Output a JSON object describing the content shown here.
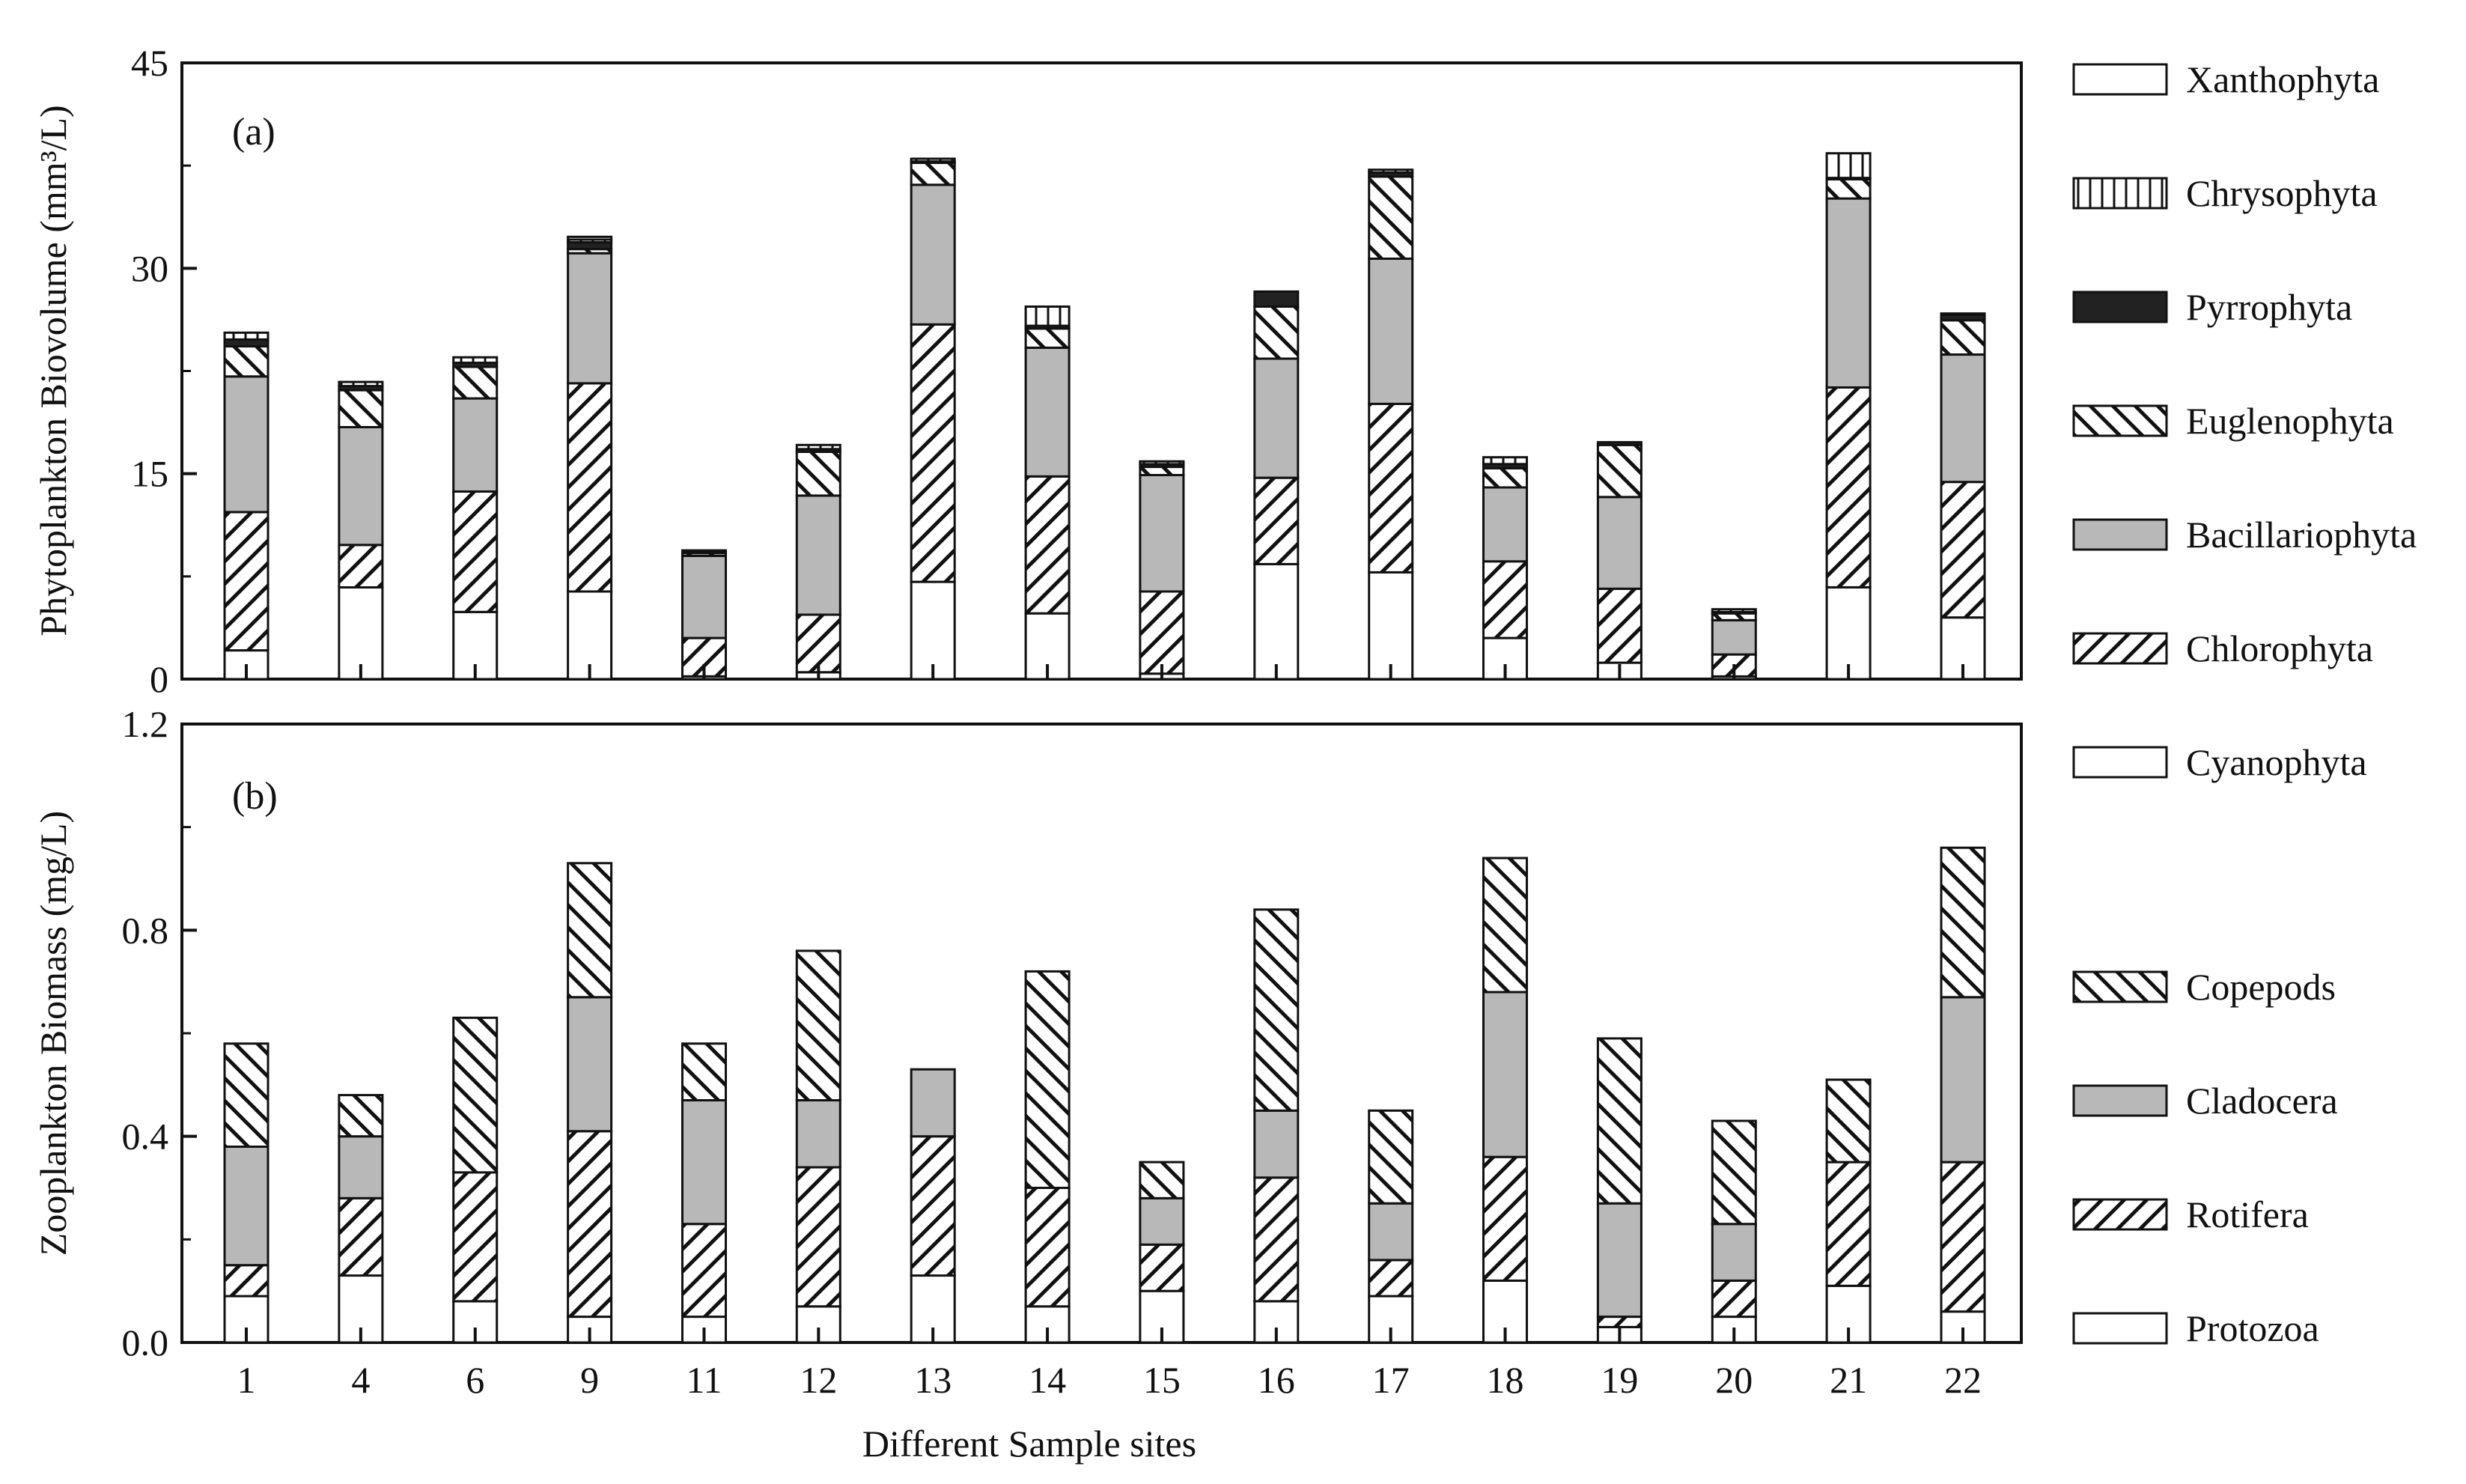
{
  "chart_data": [
    {
      "type": "bar",
      "stacked": true,
      "panel_label": "(a)",
      "ylabel": "Phytoplankton Biovolume (mm³/L)",
      "ylim": [
        0,
        45
      ],
      "yticks": [
        "0",
        "15",
        "30",
        "45"
      ],
      "categories": [
        "1",
        "4",
        "6",
        "9",
        "11",
        "12",
        "13",
        "14",
        "15",
        "16",
        "17",
        "18",
        "19",
        "20",
        "21",
        "22"
      ],
      "series": [
        {
          "name": "Cyanophyta",
          "pattern": "white",
          "values": [
            2.1,
            6.7,
            4.9,
            6.4,
            0.2,
            0.5,
            7.1,
            4.8,
            0.4,
            8.4,
            7.8,
            3.0,
            1.2,
            0.2,
            6.7,
            4.5
          ]
        },
        {
          "name": "Chlorophyta",
          "pattern": "hatch-fwd",
          "values": [
            10.1,
            3.1,
            8.8,
            15.2,
            2.8,
            4.2,
            18.8,
            10.0,
            6.0,
            6.3,
            12.3,
            5.6,
            5.4,
            1.6,
            14.6,
            9.9
          ]
        },
        {
          "name": "Bacillariophyta",
          "pattern": "gray",
          "values": [
            9.9,
            8.6,
            6.8,
            9.5,
            6.0,
            8.7,
            10.2,
            9.4,
            8.5,
            8.7,
            10.6,
            5.4,
            6.7,
            2.5,
            13.8,
            9.3
          ]
        },
        {
          "name": "Euglenophyta",
          "pattern": "hatch-back",
          "values": [
            2.2,
            2.7,
            2.3,
            0.3,
            0.2,
            3.2,
            1.6,
            1.4,
            0.6,
            3.8,
            6.0,
            1.4,
            3.8,
            0.5,
            1.4,
            2.5
          ]
        },
        {
          "name": "Pyrrophyta",
          "pattern": "black",
          "values": [
            0.5,
            0.3,
            0.3,
            0.5,
            0.1,
            0.2,
            0.1,
            0.2,
            0.2,
            1.1,
            0.3,
            0.3,
            0.2,
            0.1,
            0.1,
            0.4
          ]
        },
        {
          "name": "Chrysophyta",
          "pattern": "vlines",
          "values": [
            0.5,
            0.3,
            0.4,
            0.2,
            0.1,
            0.3,
            0.2,
            1.4,
            0.2,
            0.0,
            0.2,
            0.5,
            0.0,
            0.2,
            1.8,
            0.1
          ]
        },
        {
          "name": "Xanthophyta",
          "pattern": "white",
          "values": [
            0.0,
            0.0,
            0.0,
            0.2,
            0.0,
            0.0,
            0.0,
            0.0,
            0.0,
            0.0,
            0.0,
            0.0,
            0.0,
            0.0,
            0.0,
            0.0
          ]
        }
      ],
      "legend": [
        "Xanthophyta",
        "Chrysophyta",
        "Pyrrophyta",
        "Euglenophyta",
        "Bacillariophyta",
        "Chlorophyta",
        "Cyanophyta"
      ],
      "legend_placement": "right"
    },
    {
      "type": "bar",
      "stacked": true,
      "panel_label": "(b)",
      "ylabel": "Zooplankton Biomass (mg/L)",
      "xlabel": "Different Sample sites",
      "ylim": [
        0,
        1.2
      ],
      "yticks": [
        "0.0",
        "0.4",
        "0.8",
        "1.2"
      ],
      "categories": [
        "1",
        "4",
        "6",
        "9",
        "11",
        "12",
        "13",
        "14",
        "15",
        "16",
        "17",
        "18",
        "19",
        "20",
        "21",
        "22"
      ],
      "series": [
        {
          "name": "Protozoa",
          "pattern": "white",
          "values": [
            0.09,
            0.13,
            0.08,
            0.05,
            0.05,
            0.07,
            0.13,
            0.07,
            0.1,
            0.08,
            0.09,
            0.12,
            0.03,
            0.05,
            0.11,
            0.06
          ]
        },
        {
          "name": "Rotifera",
          "pattern": "hatch-fwd",
          "values": [
            0.06,
            0.15,
            0.25,
            0.36,
            0.18,
            0.27,
            0.27,
            0.23,
            0.09,
            0.24,
            0.07,
            0.24,
            0.02,
            0.07,
            0.24,
            0.29
          ]
        },
        {
          "name": "Cladocera",
          "pattern": "gray",
          "values": [
            0.23,
            0.12,
            0.0,
            0.26,
            0.24,
            0.13,
            0.13,
            0.0,
            0.09,
            0.13,
            0.11,
            0.32,
            0.22,
            0.11,
            0.0,
            0.32
          ]
        },
        {
          "name": "Copepods",
          "pattern": "hatch-back",
          "values": [
            0.2,
            0.08,
            0.3,
            0.26,
            0.11,
            0.29,
            0.0,
            0.42,
            0.07,
            0.39,
            0.18,
            0.26,
            0.32,
            0.2,
            0.16,
            0.29
          ]
        }
      ],
      "legend": [
        "Copepods",
        "Cladocera",
        "Rotifera",
        "Protozoa"
      ],
      "legend_placement": "right"
    }
  ]
}
